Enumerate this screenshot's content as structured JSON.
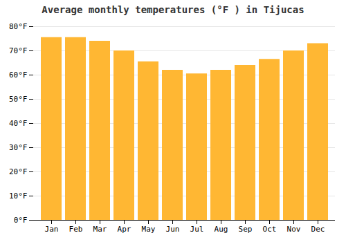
{
  "chart_data": {
    "type": "bar",
    "title": "Average monthly temperatures (°F ) in Tijucas",
    "categories": [
      "Jan",
      "Feb",
      "Mar",
      "Apr",
      "May",
      "Jun",
      "Jul",
      "Aug",
      "Sep",
      "Oct",
      "Nov",
      "Dec"
    ],
    "values": [
      75.5,
      75.5,
      74,
      70,
      65.5,
      62,
      60.5,
      62,
      64,
      66.5,
      70,
      73
    ],
    "color": "#FFB733",
    "ylim": [
      0,
      80
    ],
    "yticks": [
      {
        "value": 0,
        "label": "0°F"
      },
      {
        "value": 10,
        "label": "10°F"
      },
      {
        "value": 20,
        "label": "20°F"
      },
      {
        "value": 30,
        "label": "30°F"
      },
      {
        "value": 40,
        "label": "40°F"
      },
      {
        "value": 50,
        "label": "50°F"
      },
      {
        "value": 60,
        "label": "60°F"
      },
      {
        "value": 70,
        "label": "70°F"
      },
      {
        "value": 80,
        "label": "80°F"
      }
    ],
    "grid": true
  }
}
